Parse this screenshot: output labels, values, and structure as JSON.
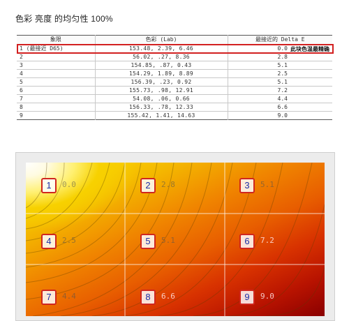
{
  "title": "色彩 亮度 的均匀性 100%",
  "table": {
    "headers": [
      "象限",
      "色彩 (Lab)",
      "最接近的 Delta E"
    ],
    "rows": [
      {
        "zone": "1 (最接近 D65)",
        "lab": "153.48,    2.39,    6.46",
        "de": "0.0"
      },
      {
        "zone": "2",
        "lab": "56.02,     .27,    8.36",
        "de": "2.8"
      },
      {
        "zone": "3",
        "lab": "154.85,     .87,    0.43",
        "de": "5.1"
      },
      {
        "zone": "4",
        "lab": "154.29,    1.89,    8.89",
        "de": "2.5"
      },
      {
        "zone": "5",
        "lab": "156.39,     .23,    0.92",
        "de": "5.1"
      },
      {
        "zone": "6",
        "lab": "155.73,     .98,   12.91",
        "de": "7.2"
      },
      {
        "zone": "7",
        "lab": "54.08,     .06,    0.66",
        "de": "4.4"
      },
      {
        "zone": "8",
        "lab": "156.33,     .78,   12.33",
        "de": "6.6"
      },
      {
        "zone": "9",
        "lab": "155.42,    1.41,   14.63",
        "de": "9.0"
      }
    ],
    "note": "此块色温最精确"
  },
  "zones": [
    {
      "num": "1",
      "de": "0.0"
    },
    {
      "num": "2",
      "de": "2.8"
    },
    {
      "num": "3",
      "de": "5.1"
    },
    {
      "num": "4",
      "de": "2.5"
    },
    {
      "num": "5",
      "de": "5.1"
    },
    {
      "num": "6",
      "de": "7.2"
    },
    {
      "num": "7",
      "de": "4.4"
    },
    {
      "num": "8",
      "de": "6.6"
    },
    {
      "num": "9",
      "de": "9.0"
    }
  ],
  "colors": {
    "highlight": "#d22020",
    "zone_border": "#d0261f",
    "zone_number": "#1b2fa6"
  }
}
